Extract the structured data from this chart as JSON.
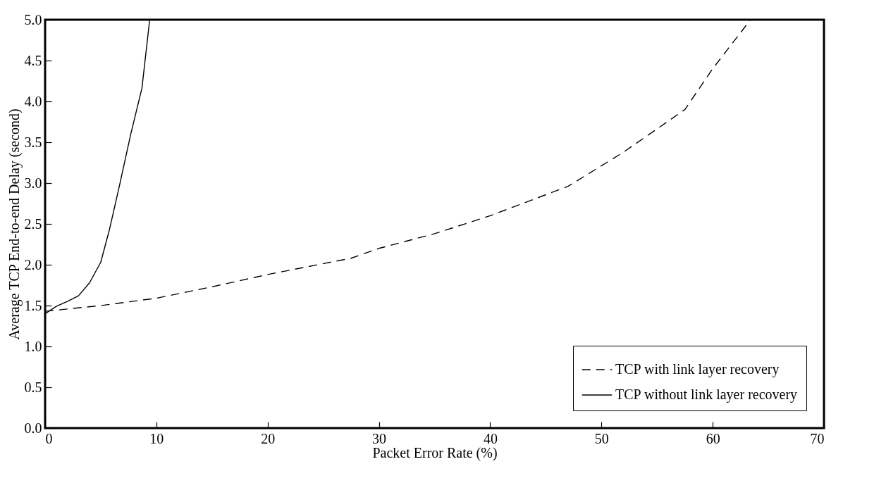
{
  "chart_data": {
    "type": "line",
    "xlabel": "Packet Error Rate (%)",
    "ylabel": "Average TCP End-to-end Delay (second)",
    "xlim": [
      0,
      70
    ],
    "xticks": [
      0,
      10,
      20,
      30,
      40,
      50,
      60,
      70
    ],
    "ylim": [
      0,
      5
    ],
    "yticks": [
      {
        "value": 0,
        "label": "0.0"
      },
      {
        "value": 0.5,
        "label": "0.5"
      },
      {
        "value": 1,
        "label": "1.0"
      },
      {
        "value": 1.5,
        "label": "1.5"
      },
      {
        "value": 2,
        "label": "2.0"
      },
      {
        "value": 2.5,
        "label": "2.5"
      },
      {
        "value": 3,
        "label": "3.0"
      },
      {
        "value": 3.5,
        "label": "3.5"
      },
      {
        "value": 4,
        "label": "4.0"
      },
      {
        "value": 4.5,
        "label": "4.5"
      },
      {
        "value": 5,
        "label": "5.0"
      }
    ],
    "grid": false,
    "legend": "bottom right",
    "marker": "none",
    "series": [
      {
        "name": "TCP with link layer recovery",
        "color": "#000000",
        "line_style": "dashed",
        "x": [
          0,
          5,
          10,
          15,
          20,
          27.5,
          30,
          35,
          40,
          47,
          52,
          57.5,
          60,
          63.4
        ],
        "values": [
          1.43,
          1.5,
          1.59,
          1.73,
          1.88,
          2.08,
          2.2,
          2.38,
          2.6,
          2.96,
          3.38,
          3.9,
          4.4,
          5.0
        ]
      },
      {
        "name": "TCP without link layer recovery",
        "color": "#000000",
        "line_style": "solid",
        "x": [
          0,
          1,
          2,
          3,
          4,
          5,
          5.8,
          6.7,
          7.7,
          8.7,
          9.4
        ],
        "values": [
          1.4,
          1.49,
          1.55,
          1.62,
          1.78,
          2.03,
          2.44,
          2.98,
          3.6,
          4.16,
          5.0
        ]
      }
    ]
  }
}
